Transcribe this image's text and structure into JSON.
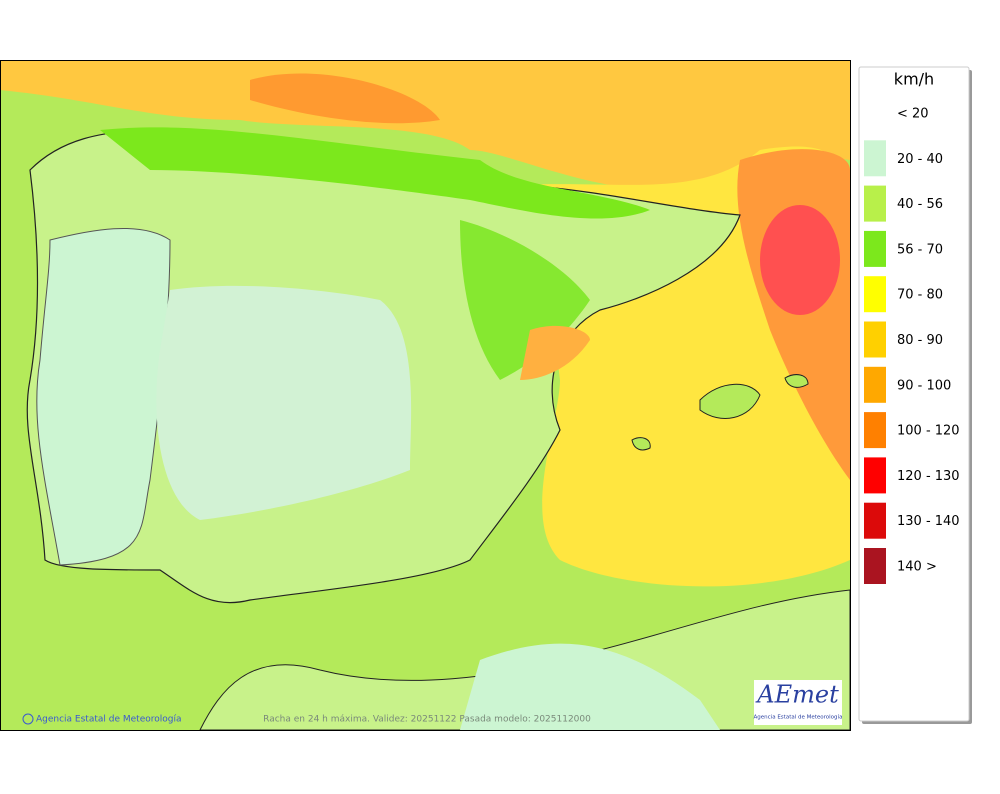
{
  "legend": {
    "unit": "km/h",
    "items": [
      {
        "label": "< 20",
        "color": "#ffffff"
      },
      {
        "label": "20 - 40",
        "color": "#ccf5d2"
      },
      {
        "label": "40 - 56",
        "color": "#b8f04a"
      },
      {
        "label": "56 - 70",
        "color": "#7ce81c"
      },
      {
        "label": "70 - 80",
        "color": "#ffff00"
      },
      {
        "label": "80 - 90",
        "color": "#ffd000"
      },
      {
        "label": "90 - 100",
        "color": "#ffa800"
      },
      {
        "label": "100 - 120",
        "color": "#ff8000"
      },
      {
        "label": "120 - 130",
        "color": "#ff0000"
      },
      {
        "label": "130 - 140",
        "color": "#dc0a0a"
      },
      {
        "label": "140 >",
        "color": "#aa1420"
      }
    ]
  },
  "footer": {
    "copyright": "Agencia Estatal de Meteorología",
    "caption": "Racha en 24 h máxima. Validez: 20251122 Pasada modelo: 2025112000"
  },
  "logo": {
    "name": "AEmet",
    "subtitle": "Agencia Estatal de Meteorología"
  }
}
